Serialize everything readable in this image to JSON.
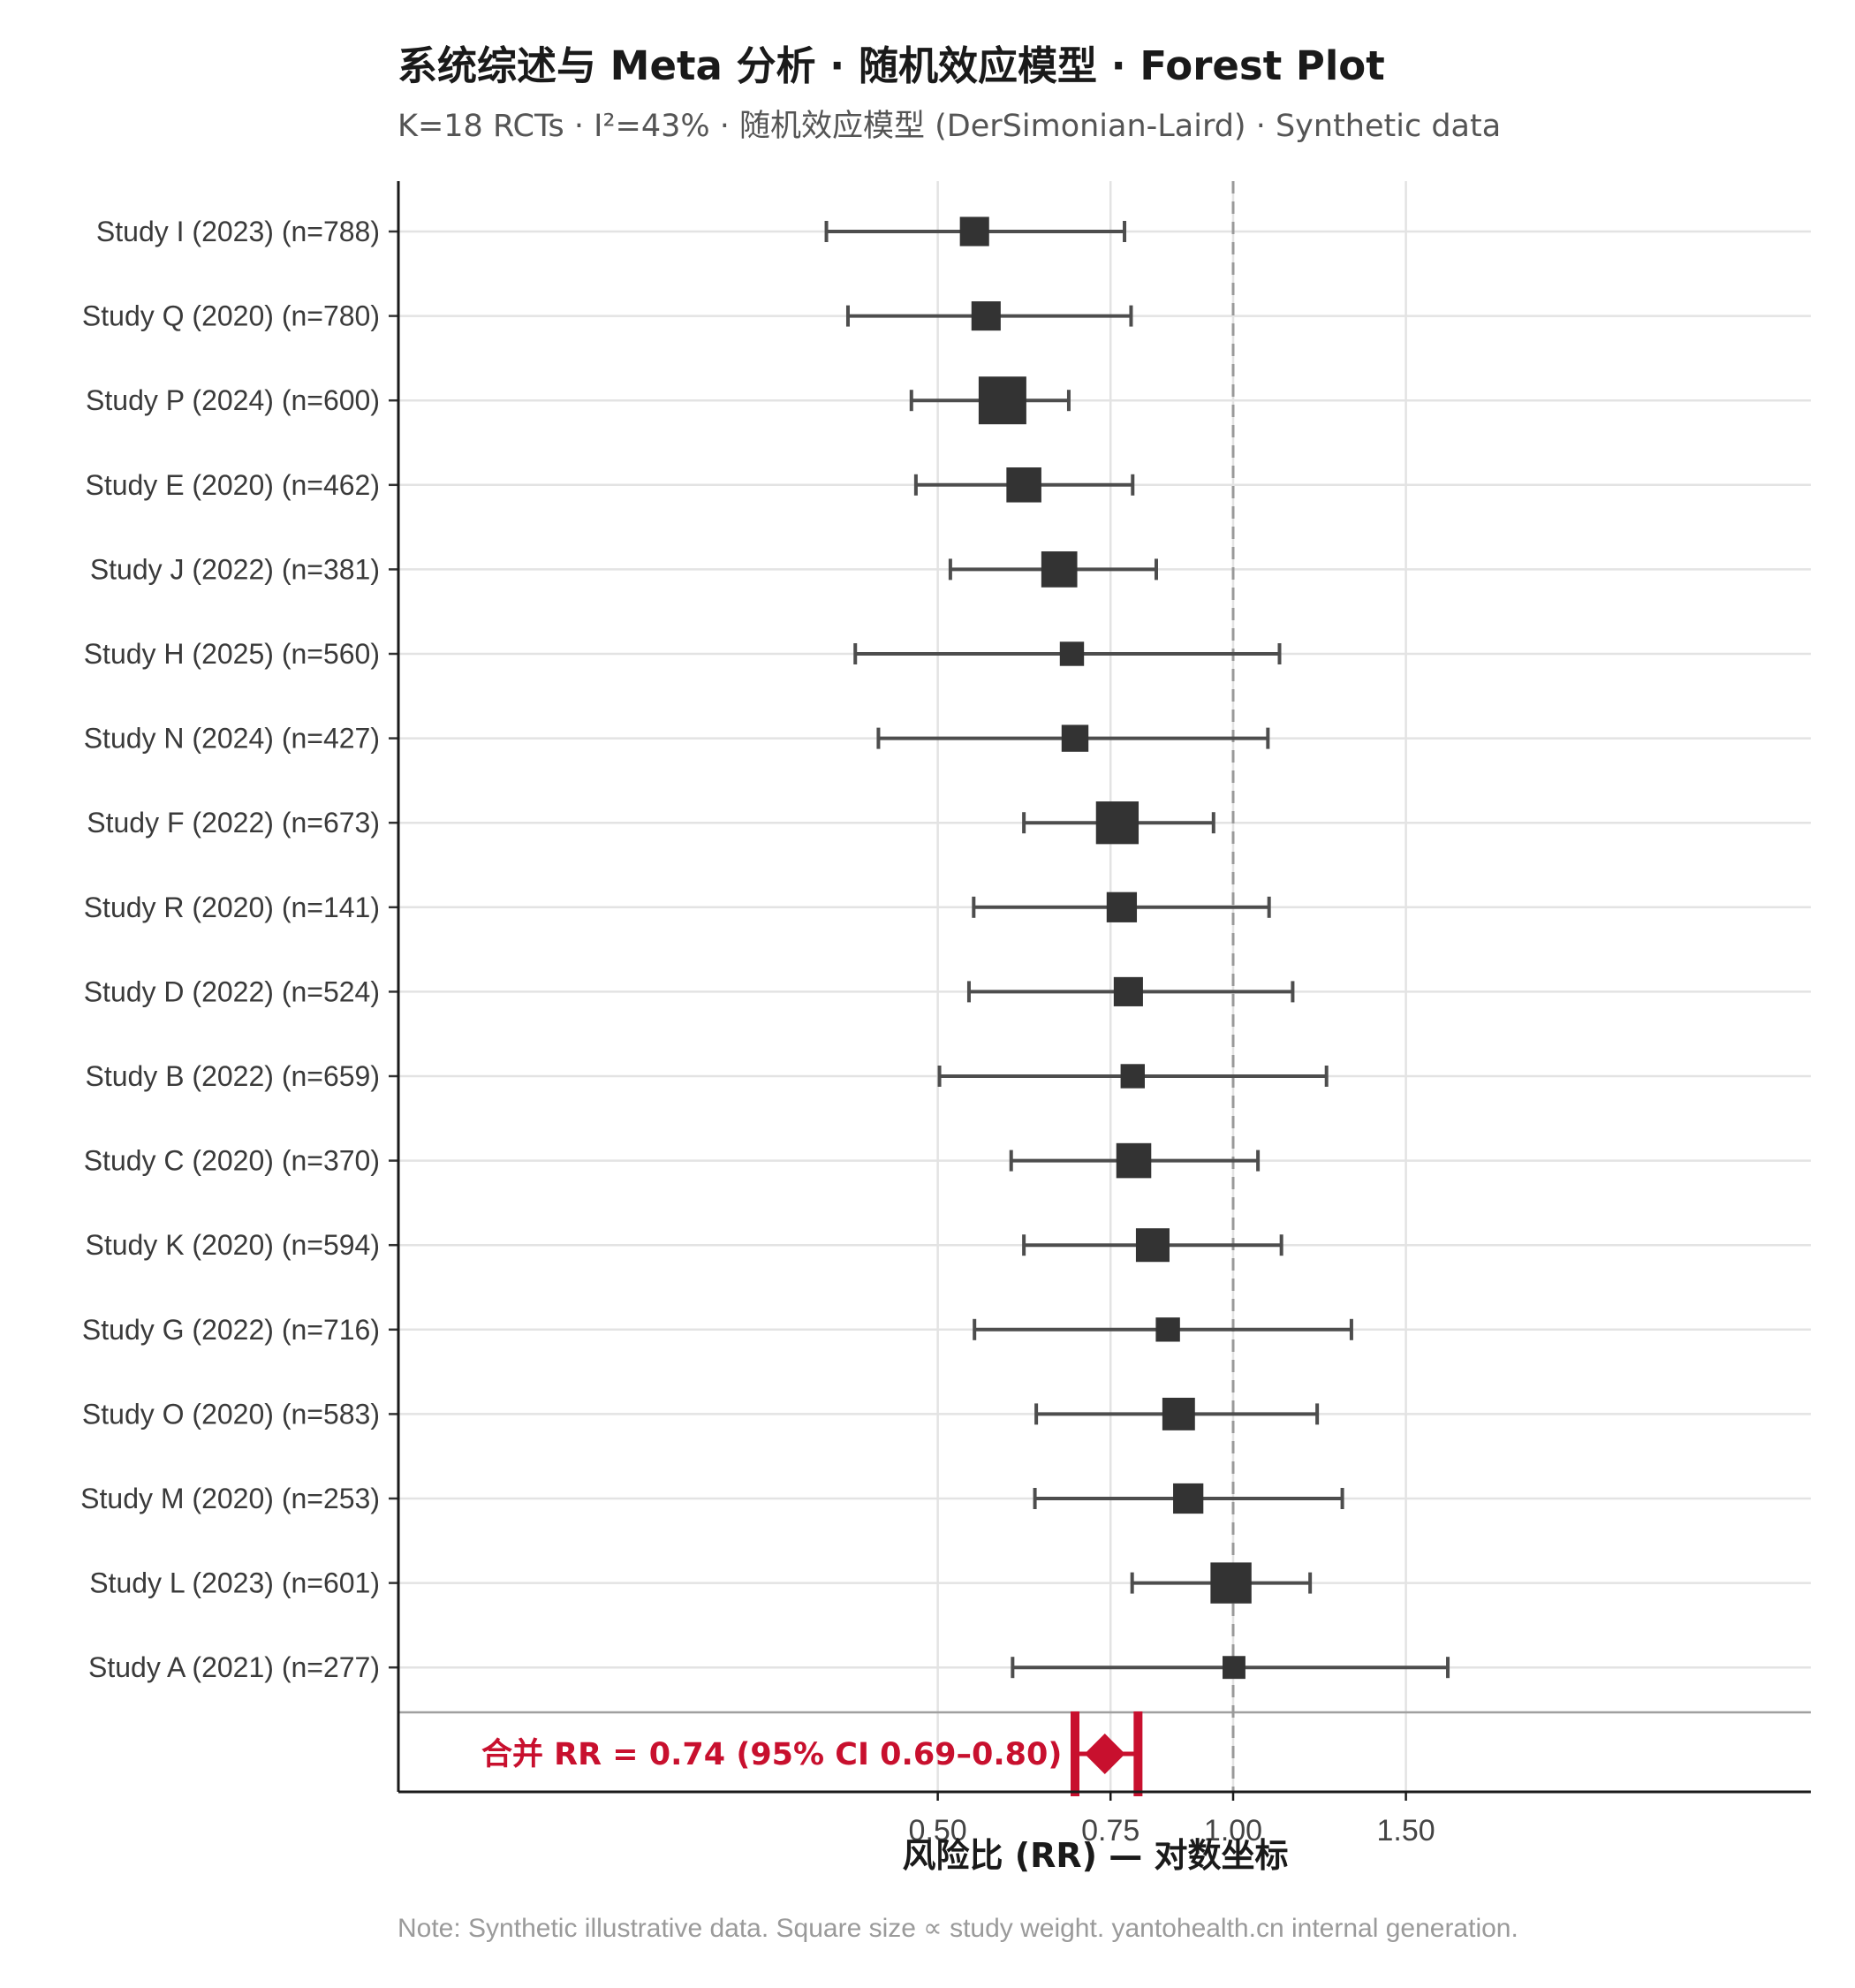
{
  "chart_data": {
    "type": "forest",
    "title": "系统综述与 Meta 分析 · 随机效应模型 · Forest Plot",
    "subtitle": "K=18 RCTs · I²=43% · 随机效应模型 (DerSimonian-Laird) · Synthetic data",
    "xlabel": "风险比 (RR) — 对数坐标",
    "x_scale": "log",
    "xlim": [
      0.39,
      1.85
    ],
    "x_ticks": [
      0.5,
      0.75,
      1.0,
      1.5
    ],
    "x_tick_labels": [
      "0.50",
      "0.75",
      "1.00",
      "1.50"
    ],
    "reference_line": 1.0,
    "studies": [
      {
        "label": "Study I (2023)  (n=788)",
        "rr": 0.545,
        "lo": 0.385,
        "hi": 0.775,
        "weight": 0.45
      },
      {
        "label": "Study Q (2020)  (n=780)",
        "rr": 0.56,
        "lo": 0.405,
        "hi": 0.787,
        "weight": 0.45
      },
      {
        "label": "Study P (2024)  (n=600)",
        "rr": 0.582,
        "lo": 0.47,
        "hi": 0.68,
        "weight": 1.0
      },
      {
        "label": "Study E (2020)  (n=462)",
        "rr": 0.612,
        "lo": 0.475,
        "hi": 0.79,
        "weight": 0.62
      },
      {
        "label": "Study J (2022)  (n=381)",
        "rr": 0.665,
        "lo": 0.515,
        "hi": 0.835,
        "weight": 0.65
      },
      {
        "label": "Study H (2025)  (n=560)",
        "rr": 0.685,
        "lo": 0.412,
        "hi": 1.115,
        "weight": 0.3
      },
      {
        "label": "Study N (2024)  (n=427)",
        "rr": 0.69,
        "lo": 0.435,
        "hi": 1.085,
        "weight": 0.38
      },
      {
        "label": "Study F (2022)  (n=673)",
        "rr": 0.762,
        "lo": 0.612,
        "hi": 0.955,
        "weight": 0.85
      },
      {
        "label": "Study R (2020)  (n=141)",
        "rr": 0.77,
        "lo": 0.544,
        "hi": 1.088,
        "weight": 0.48
      },
      {
        "label": "Study D (2022)  (n=524)",
        "rr": 0.782,
        "lo": 0.538,
        "hi": 1.15,
        "weight": 0.45
      },
      {
        "label": "Study B (2022)  (n=659)",
        "rr": 0.79,
        "lo": 0.502,
        "hi": 1.245,
        "weight": 0.3
      },
      {
        "label": "Study C (2020)  (n=370)",
        "rr": 0.792,
        "lo": 0.594,
        "hi": 1.06,
        "weight": 0.62
      },
      {
        "label": "Study K (2020)  (n=594)",
        "rr": 0.828,
        "lo": 0.612,
        "hi": 1.12,
        "weight": 0.58
      },
      {
        "label": "Study G (2022)  (n=716)",
        "rr": 0.858,
        "lo": 0.545,
        "hi": 1.32,
        "weight": 0.3
      },
      {
        "label": "Study O (2020)  (n=583)",
        "rr": 0.88,
        "lo": 0.63,
        "hi": 1.218,
        "weight": 0.55
      },
      {
        "label": "Study M (2020)  (n=253)",
        "rr": 0.9,
        "lo": 0.628,
        "hi": 1.292,
        "weight": 0.48
      },
      {
        "label": "Study L (2023)  (n=601)",
        "rr": 0.995,
        "lo": 0.789,
        "hi": 1.198,
        "weight": 0.8
      },
      {
        "label": "Study A (2021)  (n=277)",
        "rr": 1.002,
        "lo": 0.596,
        "hi": 1.655,
        "weight": 0.26
      }
    ],
    "pooled": {
      "label": "合并 RR = 0.74 (95% CI 0.69–0.80)",
      "rr": 0.74,
      "lo": 0.69,
      "hi": 0.8
    },
    "note": "Note: Synthetic illustrative data. Square size ∝ study weight. yantohealth.cn internal generation.",
    "colors": {
      "study": "#333333",
      "ci": "#4d4d4d",
      "pooled": "#c8102e",
      "grid": "#e3e3e3",
      "reference": "#999999"
    }
  }
}
